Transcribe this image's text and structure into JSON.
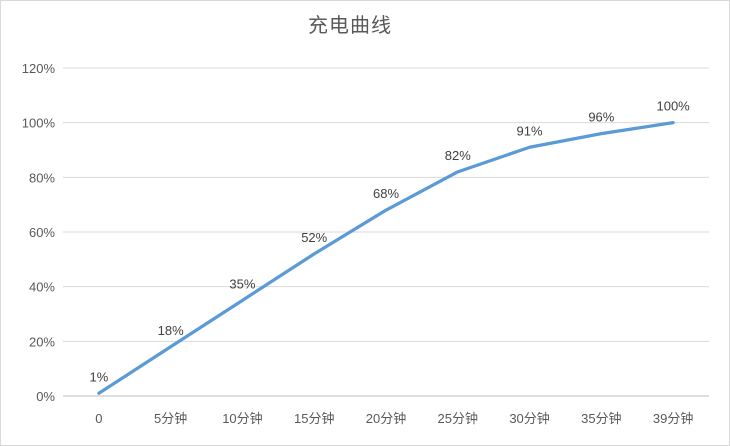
{
  "chart_data": {
    "type": "line",
    "title": "充电曲线",
    "categories": [
      "0",
      "5分钟",
      "10分钟",
      "15分钟",
      "20分钟",
      "25分钟",
      "30分钟",
      "35分钟",
      "39分钟"
    ],
    "values": [
      1,
      18,
      35,
      52,
      68,
      82,
      91,
      96,
      100
    ],
    "data_labels": [
      "1%",
      "18%",
      "35%",
      "52%",
      "68%",
      "82%",
      "91%",
      "96%",
      "100%"
    ],
    "y_tick_values": [
      0,
      20,
      40,
      60,
      80,
      100,
      120
    ],
    "y_tick_labels": [
      "0%",
      "20%",
      "40%",
      "60%",
      "80%",
      "100%",
      "120%"
    ],
    "ylim": [
      0,
      120
    ],
    "xlabel": "",
    "ylabel": "",
    "grid": "horizontal",
    "legend": "none",
    "colors": {
      "line": "#5b9bd5",
      "gridline": "#d9d9d9",
      "axis_line": "#bfbfbf",
      "axis_text": "#595959",
      "data_label_text": "#404040",
      "title_text": "#595959",
      "border": "#d9d9d9",
      "background": "#ffffff"
    }
  }
}
